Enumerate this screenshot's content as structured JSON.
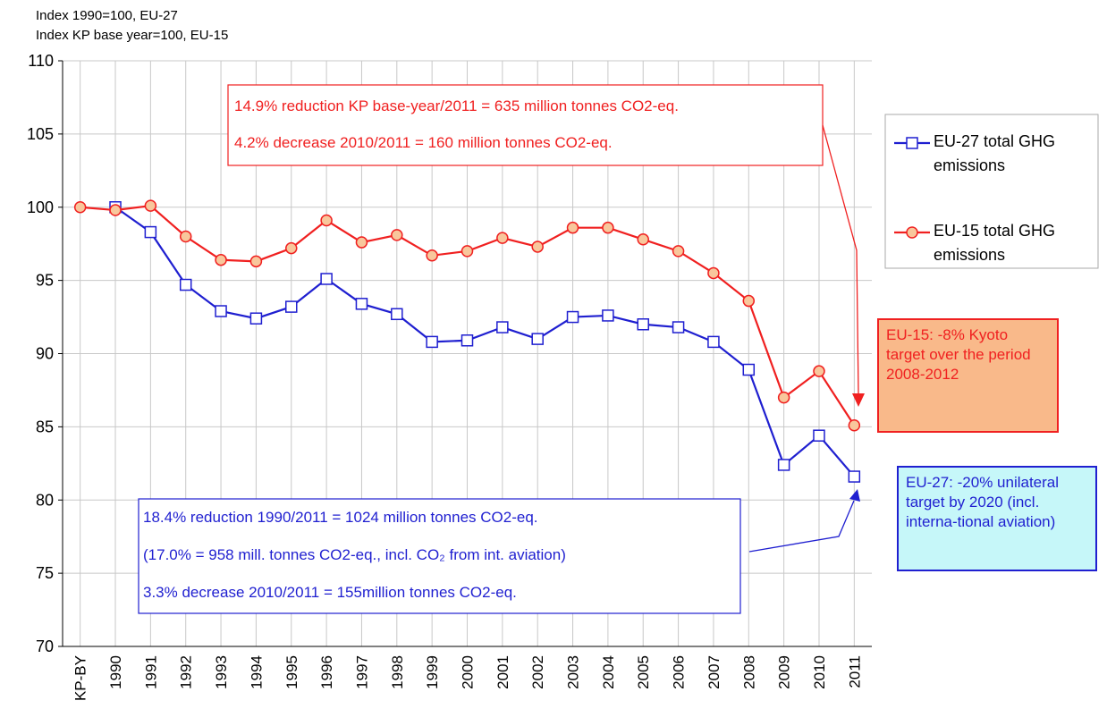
{
  "chart_data": {
    "type": "line",
    "axis_notes": [
      "Index 1990=100, EU-27",
      "Index KP base year=100, EU-15"
    ],
    "categories": [
      "KP-BY",
      "1990",
      "1991",
      "1992",
      "1993",
      "1994",
      "1995",
      "1996",
      "1997",
      "1998",
      "1999",
      "2000",
      "2001",
      "2002",
      "2003",
      "2004",
      "2005",
      "2006",
      "2007",
      "2008",
      "2009",
      "2010",
      "2011"
    ],
    "series": [
      {
        "name": "EU-27 total GHG emissions",
        "color": "#1f1fd0",
        "marker": "square",
        "values": [
          null,
          100,
          98.3,
          94.7,
          92.9,
          92.4,
          93.2,
          95.1,
          93.4,
          92.7,
          90.8,
          90.9,
          91.8,
          91.0,
          92.5,
          92.6,
          92.0,
          91.8,
          90.8,
          88.9,
          82.4,
          84.4,
          81.6
        ]
      },
      {
        "name": "EU-15 total GHG emissions",
        "color": "#f02020",
        "marker": "circle",
        "values": [
          100,
          99.8,
          100.1,
          98.0,
          96.4,
          96.3,
          97.2,
          99.1,
          97.6,
          98.1,
          96.7,
          97.0,
          97.9,
          97.3,
          98.6,
          98.6,
          97.8,
          97.0,
          95.5,
          93.6,
          87.0,
          88.8,
          85.1
        ]
      }
    ],
    "ylim": [
      70,
      110
    ],
    "yticks": [
      70,
      75,
      80,
      85,
      90,
      95,
      100,
      105,
      110
    ],
    "grid": true,
    "annotations": {
      "eu15_box": [
        "14.9% reduction KP base-year/2011 = 635 million tonnes CO2-eq.",
        "4.2% decrease  2010/2011 = 160 million tonnes CO2-eq."
      ],
      "eu27_box": [
        "18.4% reduction 1990/2011 = 1024 million tonnes CO2-eq.",
        "(17.0% = 958 mill. tonnes CO2-eq., incl. CO₂ from int. aviation)",
        "3.3% decrease  2010/2011 = 155million tonnes CO2-eq."
      ],
      "eu15_target": "EU-15:  -8% Kyoto target over the period 2008-2012",
      "eu27_target": "EU-27: -20% unilateral target by 2020 (incl. interna-tional aviation)"
    }
  }
}
